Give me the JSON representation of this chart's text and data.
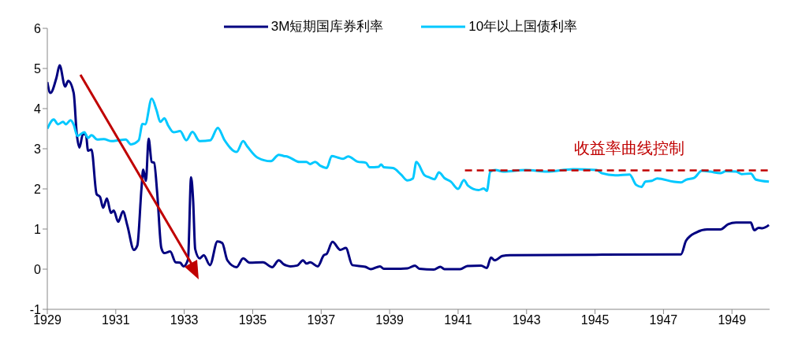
{
  "chart_data": {
    "type": "line",
    "xlim": [
      1929,
      1950.1
    ],
    "xticks": [
      1929,
      1931,
      1933,
      1935,
      1937,
      1939,
      1941,
      1943,
      1945,
      1947,
      1949
    ],
    "ylim": [
      -1,
      6
    ],
    "yticks": [
      -1,
      0,
      1,
      2,
      3,
      4,
      5,
      6
    ],
    "legend": "top",
    "annotations": [
      {
        "text": "收益率曲线控制",
        "x": 1946,
        "y": 2.46
      }
    ],
    "series": [
      {
        "name": "3M短期国库券利率",
        "color": "#000080",
        "x": [
          1929.0,
          1929.09,
          1929.27,
          1929.36,
          1929.52,
          1929.61,
          1929.77,
          1929.86,
          1929.94,
          1930.04,
          1930.13,
          1930.19,
          1930.29,
          1930.44,
          1930.54,
          1930.63,
          1930.74,
          1930.86,
          1930.94,
          1931.07,
          1931.21,
          1931.34,
          1931.53,
          1931.63,
          1931.75,
          1931.8,
          1931.88,
          1931.96,
          1932.05,
          1932.12,
          1932.21,
          1932.33,
          1932.42,
          1932.59,
          1932.75,
          1932.88,
          1932.98,
          1933.11,
          1933.2,
          1933.26,
          1933.32,
          1933.45,
          1933.57,
          1933.75,
          1933.97,
          1934.11,
          1934.26,
          1934.53,
          1934.72,
          1934.91,
          1935.3,
          1935.57,
          1935.76,
          1935.91,
          1935.99,
          1936.1,
          1936.3,
          1936.47,
          1936.57,
          1936.68,
          1936.9,
          1937.08,
          1937.16,
          1937.33,
          1937.56,
          1937.72,
          1937.91,
          1938.29,
          1938.45,
          1938.72,
          1938.83,
          1939.29,
          1939.52,
          1939.74,
          1939.87,
          1940.29,
          1940.48,
          1940.6,
          1941.06,
          1941.27,
          1941.67,
          1941.84,
          1941.96,
          1942.07,
          1942.15,
          1942.29,
          1942.52,
          1947.51,
          1947.66,
          1947.97,
          1948.28,
          1948.66,
          1948.89,
          1949.12,
          1949.55,
          1949.65,
          1949.78,
          1949.89,
          1950.08
        ],
        "values": [
          4.66,
          4.39,
          4.78,
          5.08,
          4.55,
          4.69,
          4.39,
          3.37,
          3.03,
          3.37,
          3.34,
          2.95,
          2.98,
          1.87,
          1.8,
          1.53,
          1.76,
          1.4,
          1.46,
          1.18,
          1.44,
          1.08,
          0.48,
          0.59,
          2.0,
          2.48,
          2.2,
          3.25,
          2.67,
          2.65,
          1.9,
          0.53,
          0.4,
          0.44,
          0.17,
          0.16,
          0.07,
          0.24,
          2.29,
          1.71,
          0.5,
          0.27,
          0.35,
          0.1,
          0.69,
          0.65,
          0.22,
          0.05,
          0.27,
          0.16,
          0.17,
          0.05,
          0.22,
          0.12,
          0.09,
          0.07,
          0.09,
          0.22,
          0.14,
          0.17,
          0.07,
          0.35,
          0.38,
          0.68,
          0.48,
          0.53,
          0.1,
          0.06,
          0.0,
          0.07,
          0.01,
          0.01,
          0.02,
          0.09,
          0.01,
          -0.01,
          0.06,
          0.0,
          0.0,
          0.08,
          0.09,
          0.03,
          0.29,
          0.22,
          0.25,
          0.33,
          0.35,
          0.37,
          0.71,
          0.92,
          0.99,
          0.99,
          1.12,
          1.16,
          1.16,
          0.97,
          1.03,
          1.02,
          1.1
        ]
      },
      {
        "name": "10年以上国债利率",
        "color": "#00c8ff",
        "x": [
          1929.0,
          1929.19,
          1929.31,
          1929.46,
          1929.54,
          1929.68,
          1929.77,
          1929.88,
          1930.08,
          1930.19,
          1930.29,
          1930.46,
          1930.65,
          1930.88,
          1931.07,
          1931.29,
          1931.44,
          1931.67,
          1931.78,
          1931.86,
          1932.05,
          1932.19,
          1932.3,
          1932.42,
          1932.53,
          1932.69,
          1932.88,
          1933.06,
          1933.24,
          1933.45,
          1933.76,
          1933.98,
          1934.18,
          1934.53,
          1934.72,
          1934.84,
          1935.14,
          1935.53,
          1935.76,
          1935.91,
          1936.03,
          1936.37,
          1936.57,
          1936.68,
          1936.82,
          1936.99,
          1937.16,
          1937.31,
          1937.49,
          1937.64,
          1937.79,
          1938.06,
          1938.31,
          1938.41,
          1938.68,
          1938.75,
          1938.83,
          1939.1,
          1939.33,
          1939.52,
          1939.68,
          1939.78,
          1940.02,
          1940.15,
          1940.31,
          1940.44,
          1940.6,
          1940.79,
          1941.0,
          1941.17,
          1941.29,
          1941.6,
          1941.75,
          1941.84,
          1941.94,
          1942.09,
          1942.32,
          1942.98,
          1943.59,
          1944.36,
          1945.05,
          1945.2,
          1945.59,
          1946.01,
          1946.2,
          1946.36,
          1946.47,
          1946.66,
          1946.82,
          1947.28,
          1947.51,
          1947.66,
          1947.89,
          1948.12,
          1948.36,
          1948.66,
          1948.82,
          1949.12,
          1949.28,
          1949.55,
          1949.7,
          1950.08
        ],
        "values": [
          3.5,
          3.73,
          3.61,
          3.67,
          3.61,
          3.71,
          3.6,
          3.32,
          3.41,
          3.27,
          3.34,
          3.23,
          3.24,
          3.19,
          3.21,
          3.23,
          3.11,
          3.21,
          3.62,
          3.61,
          4.25,
          3.96,
          3.67,
          3.76,
          3.58,
          3.41,
          3.44,
          3.21,
          3.42,
          3.19,
          3.21,
          3.52,
          3.21,
          2.92,
          3.19,
          3.06,
          2.78,
          2.69,
          2.85,
          2.82,
          2.8,
          2.67,
          2.67,
          2.62,
          2.67,
          2.57,
          2.52,
          2.82,
          2.78,
          2.75,
          2.81,
          2.68,
          2.65,
          2.54,
          2.55,
          2.61,
          2.54,
          2.52,
          2.36,
          2.21,
          2.26,
          2.67,
          2.34,
          2.29,
          2.24,
          2.41,
          2.27,
          2.18,
          2.0,
          2.22,
          2.08,
          1.97,
          2.01,
          1.95,
          2.43,
          2.47,
          2.43,
          2.47,
          2.43,
          2.49,
          2.47,
          2.39,
          2.34,
          2.36,
          2.1,
          2.05,
          2.18,
          2.2,
          2.26,
          2.18,
          2.16,
          2.23,
          2.27,
          2.45,
          2.43,
          2.39,
          2.44,
          2.43,
          2.37,
          2.38,
          2.23,
          2.18
        ]
      },
      {
        "type": "line",
        "line_style": "dashed",
        "color": "#c00000",
        "x": [
          1941.2,
          1950.1
        ],
        "values": [
          2.46,
          2.46
        ]
      }
    ]
  }
}
